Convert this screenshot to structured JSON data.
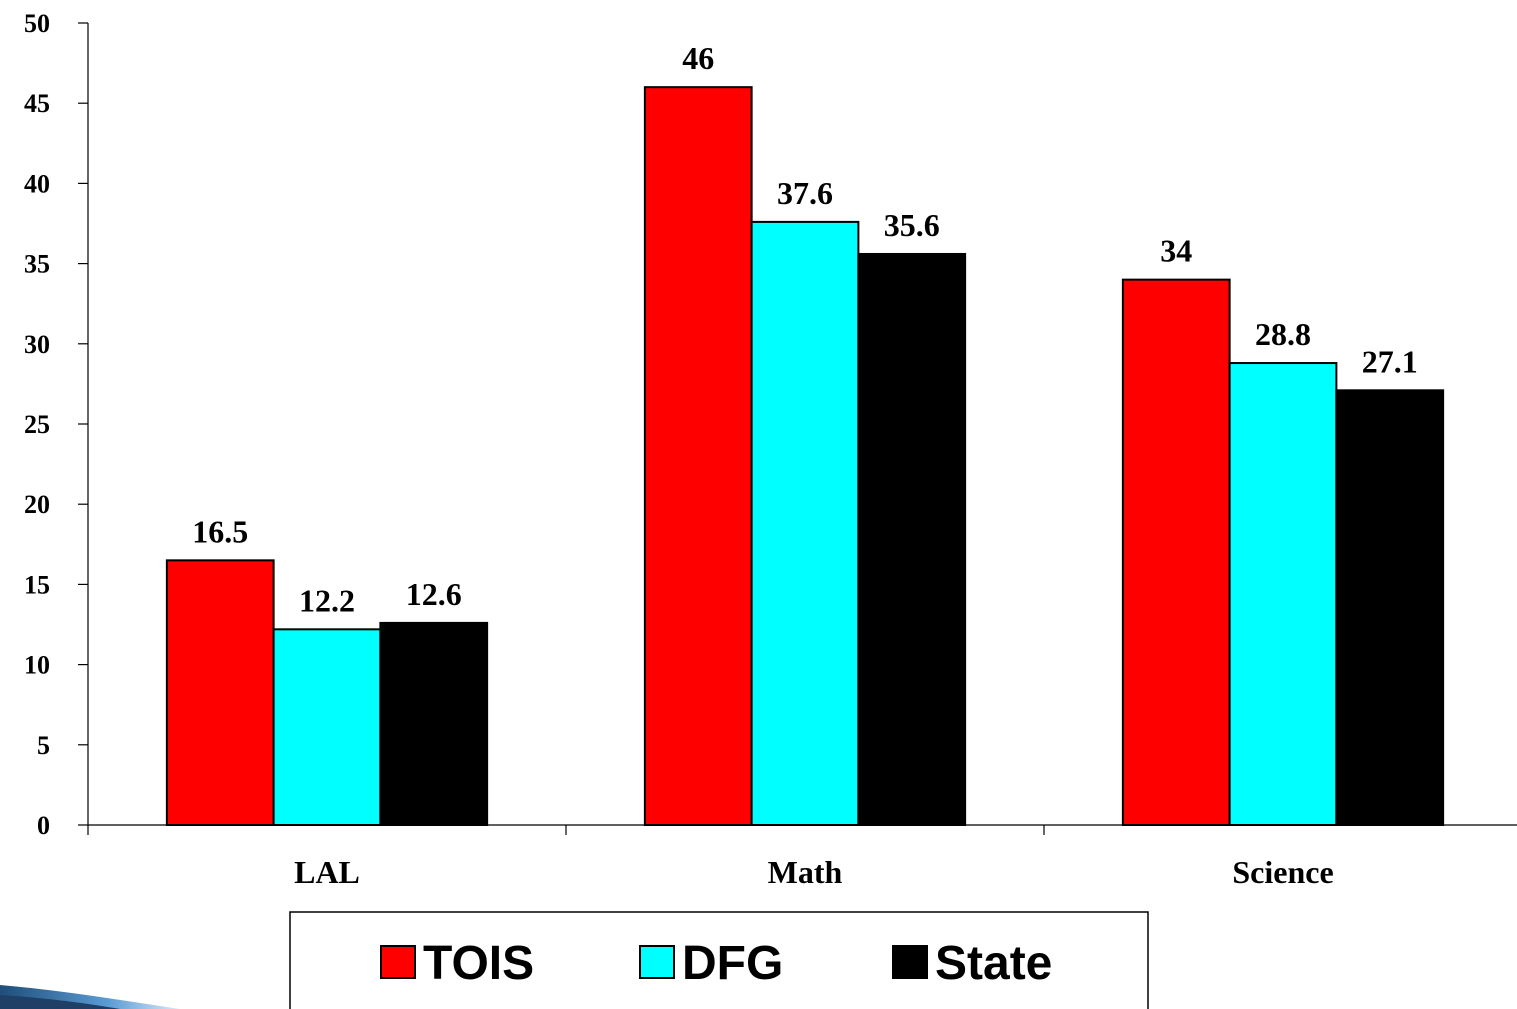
{
  "chart_data": {
    "type": "bar",
    "categories": [
      "LAL",
      "Math",
      "Science"
    ],
    "series": [
      {
        "name": "TOIS",
        "color": "#ff0000",
        "values": [
          16.5,
          46,
          34
        ]
      },
      {
        "name": "DFG",
        "color": "#00ffff",
        "values": [
          12.2,
          37.6,
          28.8
        ]
      },
      {
        "name": "State",
        "color": "#000000",
        "values": [
          12.6,
          35.6,
          27.1
        ]
      }
    ],
    "ylim": [
      0,
      50
    ],
    "yticks": [
      0,
      5,
      10,
      15,
      20,
      25,
      30,
      35,
      40,
      45,
      50
    ],
    "grid": false,
    "legend": "bottom"
  }
}
